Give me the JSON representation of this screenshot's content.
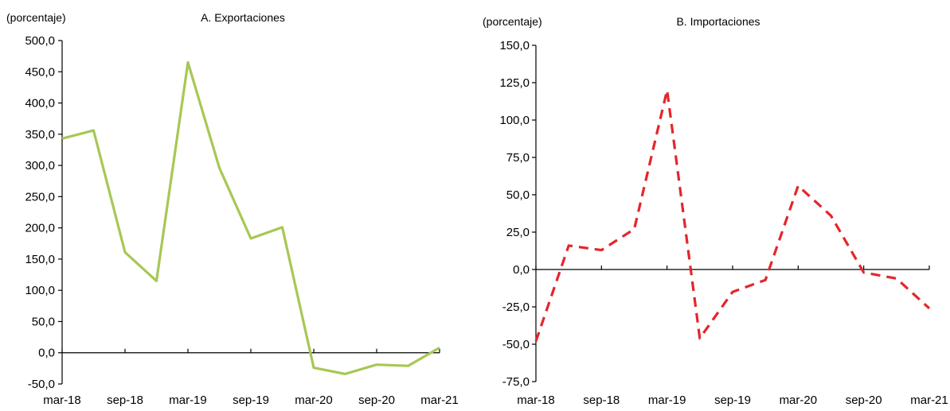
{
  "chart_data": [
    {
      "type": "line",
      "title": "A. Exportaciones",
      "ylabel": "(porcentaje)",
      "xlabel": "",
      "ylim": [
        -50,
        500
      ],
      "y_ticks": [
        "500,0",
        "450,0",
        "400,0",
        "350,0",
        "300,0",
        "250,0",
        "200,0",
        "150,0",
        "100,0",
        "50,0",
        "0,0",
        "-50,0"
      ],
      "x_ticks": [
        "mar-18",
        "sep-18",
        "mar-19",
        "sep-19",
        "mar-20",
        "sep-20",
        "mar-21"
      ],
      "x": [
        "mar-18",
        "jun-18",
        "sep-18",
        "dic-18",
        "mar-19",
        "jun-19",
        "sep-19",
        "dic-19",
        "mar-20",
        "jun-20",
        "sep-20",
        "dic-20",
        "mar-21"
      ],
      "grid": false,
      "series": [
        {
          "color": "#a6c855",
          "style": "solid",
          "values": [
            343,
            356,
            161,
            115,
            465,
            296,
            183,
            201,
            -24,
            -34,
            -19,
            -21,
            8
          ]
        }
      ]
    },
    {
      "type": "line",
      "title": "B. Importaciones",
      "ylabel": "(porcentaje)",
      "xlabel": "",
      "ylim": [
        -75,
        150
      ],
      "y_ticks": [
        "150,0",
        "125,0",
        "100,0",
        "75,0",
        "50,0",
        "25,0",
        "0,0",
        "-25,0",
        "-50,0",
        "-75,0"
      ],
      "x_ticks": [
        "mar-18",
        "sep-18",
        "mar-19",
        "sep-19",
        "mar-20",
        "sep-20",
        "mar-21"
      ],
      "x": [
        "mar-18",
        "jun-18",
        "sep-18",
        "dic-18",
        "mar-19",
        "jun-19",
        "sep-19",
        "dic-19",
        "mar-20",
        "jun-20",
        "sep-20",
        "dic-20",
        "mar-21"
      ],
      "grid": false,
      "series": [
        {
          "color": "#e3262b",
          "style": "dashed",
          "values": [
            -48,
            16,
            13,
            27,
            120,
            -46,
            -15,
            -7,
            56,
            36,
            -2,
            -6,
            -26
          ]
        }
      ]
    }
  ]
}
